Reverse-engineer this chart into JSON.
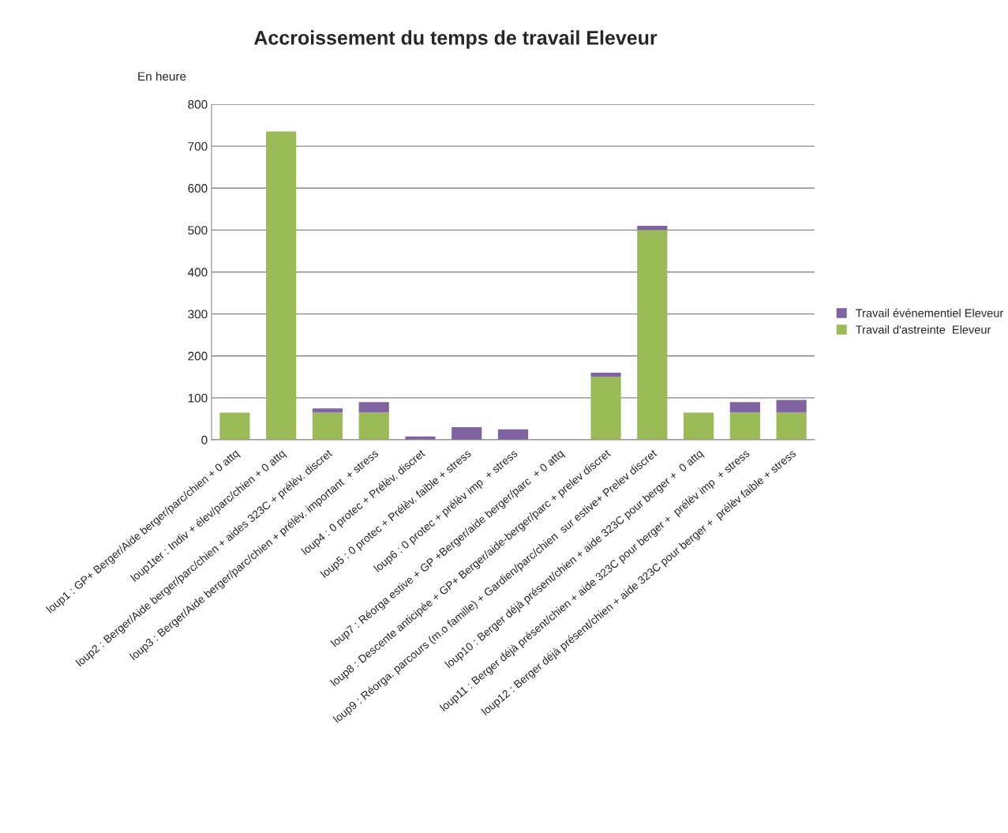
{
  "chart_data": {
    "type": "bar",
    "title": "Accroissement du temps de travail Eleveur",
    "ylabel": "En heure",
    "stacked": true,
    "grid": "y",
    "legend": "right",
    "categories": [
      "loup1 : GP+ Berger/Aide berger/parc/chien + 0 attq",
      "loup1ter : Indiv + élev/parc/chien + 0 attq",
      "loup2 : Berger/Aide berger/parc/chien + aides 323C + prélèv. discret",
      "loup3 : Berger/Aide berger/parc/chien + prélèv. important  + stress",
      "loup4 : 0 protec + Prélèv. discret",
      "loup5 : 0 protec + Prélèv. faible + stress",
      "loup6 : 0 protec + prélèv imp  + stress",
      "loup7 : Réorga estive + GP +Berger/aide berger/parc  + 0 attq",
      "loup8 : Descente anticipée + GP+ Berger/aide-berger/parc + prelev discret",
      "loup9 : Réorga. parcours (m.o famille) + Gardien/parc/chien  sur estive+ Prelev discret",
      "loup10 : Berger déjà présent/chien + aide 323C pour berger +  0 attq",
      "loup11 : Berger déjà présent/chien + aide 323C pour berger +  prélèv imp  + stress",
      "loup12 : Berger déjà présent/chien + aide 323C pour berger +  prélèv faible + stress"
    ],
    "series": [
      {
        "name": "Travail d'astreinte  Eleveur",
        "color": "#9bbb59",
        "values": [
          65,
          735,
          65,
          65,
          0,
          0,
          0,
          0,
          150,
          500,
          65,
          65,
          65
        ]
      },
      {
        "name": "Travail événementiel Eleveur",
        "color": "#8064a2",
        "values": [
          0,
          0,
          10,
          25,
          8,
          30,
          25,
          0,
          10,
          10,
          0,
          25,
          30
        ]
      }
    ],
    "ylim": [
      0,
      800
    ],
    "yticks": [
      0,
      100,
      200,
      300,
      400,
      500,
      600,
      700,
      800
    ]
  }
}
